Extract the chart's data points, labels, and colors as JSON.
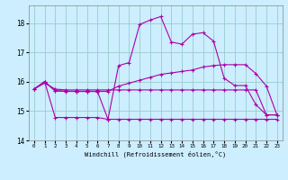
{
  "xlabel": "Windchill (Refroidissement éolien,°C)",
  "background_color": "#cceeff",
  "grid_color": "#99cccc",
  "line_color": "#aa00aa",
  "xlim": [
    -0.5,
    23.5
  ],
  "ylim": [
    14,
    18.6
  ],
  "yticks": [
    14,
    15,
    16,
    17,
    18
  ],
  "xticks": [
    0,
    1,
    2,
    3,
    4,
    5,
    6,
    7,
    8,
    9,
    10,
    11,
    12,
    13,
    14,
    15,
    16,
    17,
    18,
    19,
    20,
    21,
    22,
    23
  ],
  "line1_x": [
    0,
    1,
    2,
    3,
    4,
    5,
    6,
    7,
    8,
    9,
    10,
    11,
    12,
    13,
    14,
    15,
    16,
    17,
    18,
    19,
    20,
    21,
    22,
    23
  ],
  "line1_y": [
    15.75,
    15.95,
    15.75,
    15.72,
    15.72,
    15.72,
    15.72,
    15.72,
    15.72,
    15.72,
    15.72,
    15.72,
    15.72,
    15.72,
    15.72,
    15.72,
    15.72,
    15.72,
    15.72,
    15.72,
    15.72,
    15.72,
    14.87,
    14.87
  ],
  "line2_x": [
    0,
    1,
    2,
    3,
    4,
    5,
    6,
    7,
    8,
    9,
    10,
    11,
    12,
    13,
    14,
    15,
    16,
    17,
    18,
    19,
    20,
    21,
    22,
    23
  ],
  "line2_y": [
    15.75,
    16.0,
    15.7,
    15.68,
    15.67,
    15.67,
    15.67,
    15.67,
    15.85,
    15.95,
    16.05,
    16.15,
    16.25,
    16.3,
    16.35,
    16.4,
    16.5,
    16.55,
    16.58,
    16.58,
    16.58,
    16.28,
    15.85,
    14.87
  ],
  "line3_x": [
    0,
    1,
    2,
    3,
    4,
    5,
    6,
    7,
    8,
    9,
    10,
    11,
    12,
    13,
    14,
    15,
    16,
    17,
    18,
    19,
    20,
    21,
    22,
    23
  ],
  "line3_y": [
    15.75,
    16.0,
    15.68,
    15.67,
    15.67,
    15.67,
    15.67,
    14.72,
    16.55,
    16.65,
    17.95,
    18.1,
    18.22,
    17.35,
    17.28,
    17.62,
    17.67,
    17.38,
    16.12,
    15.87,
    15.87,
    15.22,
    14.87,
    14.87
  ],
  "line4_x": [
    0,
    1,
    2,
    3,
    4,
    5,
    6,
    7,
    8,
    9,
    10,
    11,
    12,
    13,
    14,
    15,
    16,
    17,
    18,
    19,
    20,
    21,
    22,
    23
  ],
  "line4_y": [
    15.75,
    16.0,
    14.78,
    14.78,
    14.78,
    14.78,
    14.78,
    14.72,
    14.72,
    14.72,
    14.72,
    14.72,
    14.72,
    14.72,
    14.72,
    14.72,
    14.72,
    14.72,
    14.72,
    14.72,
    14.72,
    14.72,
    14.72,
    14.72
  ]
}
